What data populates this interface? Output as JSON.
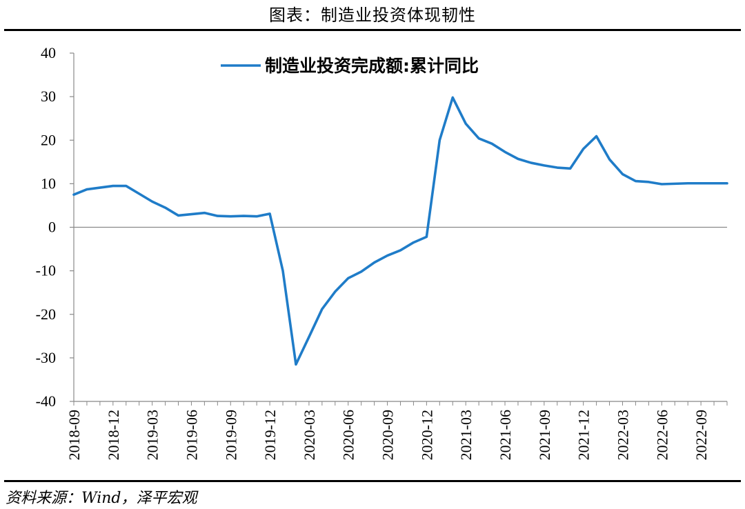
{
  "header": {
    "title": "图表：制造业投资体现韧性"
  },
  "footer": {
    "source": "资料来源：Wind，泽平宏观"
  },
  "chart_data": {
    "type": "line",
    "title": "图表：制造业投资体现韧性",
    "xlabel": "",
    "ylabel": "",
    "ylim": [
      -40,
      40
    ],
    "yticks": [
      40,
      30,
      20,
      10,
      0,
      -10,
      -20,
      -30,
      -40
    ],
    "grid": false,
    "legend_position": "top-center",
    "line_color": "#1f7cc8",
    "x": [
      "2018-09",
      "2018-10",
      "2018-11",
      "2018-12",
      "2019-01",
      "2019-02",
      "2019-03",
      "2019-04",
      "2019-05",
      "2019-06",
      "2019-07",
      "2019-08",
      "2019-09",
      "2019-10",
      "2019-11",
      "2019-12",
      "2020-01",
      "2020-02",
      "2020-03",
      "2020-04",
      "2020-05",
      "2020-06",
      "2020-07",
      "2020-08",
      "2020-09",
      "2020-10",
      "2020-11",
      "2020-12",
      "2021-01",
      "2021-02",
      "2021-03",
      "2021-04",
      "2021-05",
      "2021-06",
      "2021-07",
      "2021-08",
      "2021-09",
      "2021-10",
      "2021-11",
      "2021-12",
      "2022-01",
      "2022-02",
      "2022-03",
      "2022-04",
      "2022-05",
      "2022-06",
      "2022-07",
      "2022-08",
      "2022-09",
      "2022-10",
      "2022-11"
    ],
    "x_tick_labels": [
      "2018-09",
      "2018-12",
      "2019-03",
      "2019-06",
      "2019-09",
      "2019-12",
      "2020-03",
      "2020-06",
      "2020-09",
      "2020-12",
      "2021-03",
      "2021-06",
      "2021-09",
      "2021-12",
      "2022-03",
      "2022-06",
      "2022-09"
    ],
    "series": [
      {
        "name": "制造业投资完成额:累计同比",
        "values": [
          7.5,
          8.7,
          9.1,
          9.5,
          9.5,
          7.7,
          5.9,
          4.5,
          2.7,
          3.0,
          3.3,
          2.6,
          2.5,
          2.6,
          2.5,
          3.1,
          -10.0,
          -31.5,
          -25.2,
          -18.8,
          -14.8,
          -11.7,
          -10.2,
          -8.1,
          -6.5,
          -5.3,
          -3.5,
          -2.2,
          20.0,
          29.8,
          23.8,
          20.4,
          19.2,
          17.3,
          15.7,
          14.8,
          14.2,
          13.7,
          13.5,
          18.0,
          20.9,
          15.6,
          12.2,
          10.6,
          10.4,
          9.9,
          10.0,
          10.1,
          10.1,
          10.1,
          10.1
        ]
      }
    ]
  }
}
